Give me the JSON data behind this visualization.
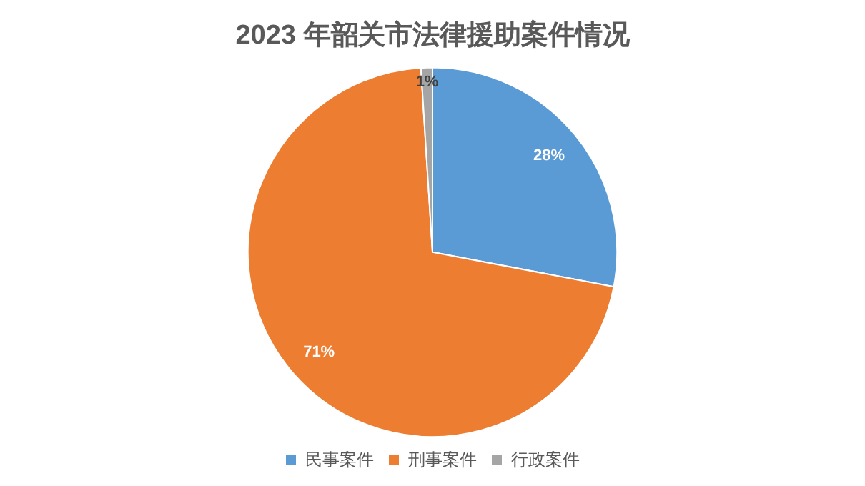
{
  "chart_data": {
    "type": "pie",
    "title": "2023 年韶关市法律援助案件情况",
    "categories": [
      "民事案件",
      "刑事案件",
      "行政案件"
    ],
    "values": [
      28,
      71,
      1
    ],
    "colors": [
      "#5b9bd5",
      "#ed7d31",
      "#a5a5a5"
    ],
    "value_labels": [
      "28%",
      "71%",
      "1%"
    ],
    "legend": "bottom"
  }
}
